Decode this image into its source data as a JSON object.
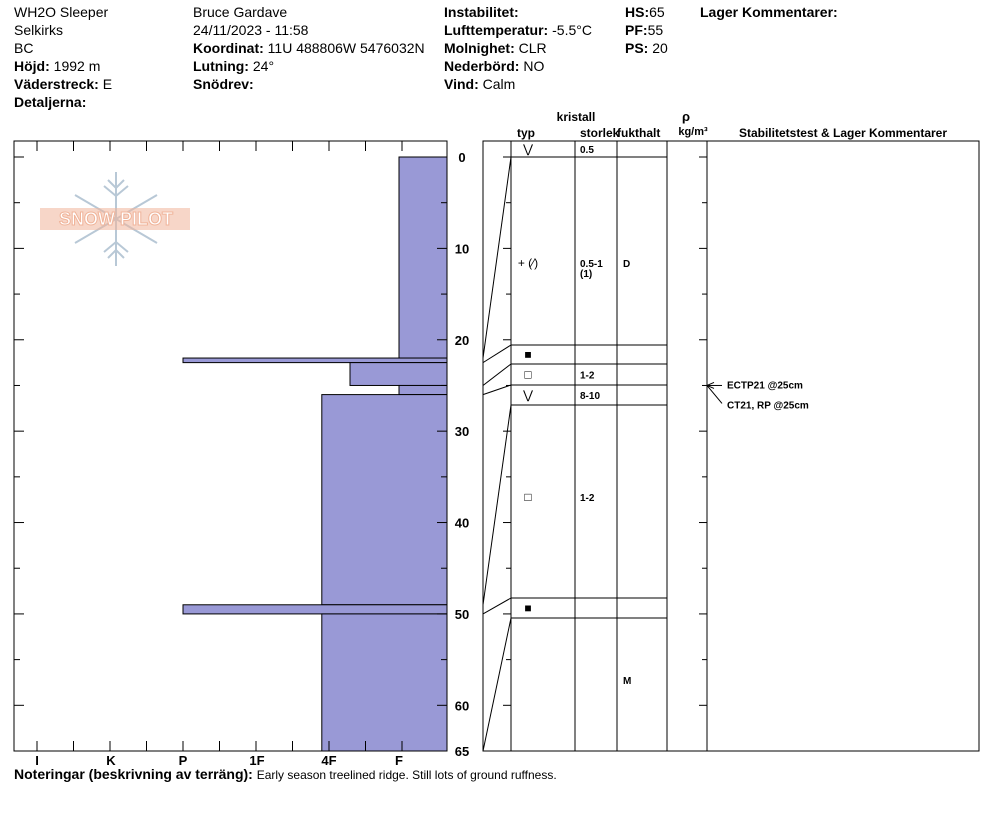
{
  "header": {
    "location": "WH2O Sleeper",
    "range": "Selkirks",
    "state": "BC",
    "elevation_label": "Höjd:",
    "elevation": "1992 m",
    "aspect_label": "Väderstreck:",
    "aspect": "E",
    "details_label": "Detaljerna:",
    "observer": "Bruce Gardave",
    "datetime": "24/11/2023 - 11:58",
    "coord_label": "Koordinat:",
    "coord": "11U 488806W 5476032N",
    "slope_label": "Lutning:",
    "slope": "24°",
    "drift_label": "Snödrev:",
    "drift": "",
    "instability_label": "Instabilitet:",
    "instability": "",
    "airtemp_label": "Lufttemperatur:",
    "airtemp": "-5.5°C",
    "sky_label": "Molnighet:",
    "sky": "CLR",
    "precip_label": "Nederbörd:",
    "precip": "NO",
    "wind_label": "Vind:",
    "wind": "Calm",
    "hs_label": "HS:",
    "hs": "65",
    "pf_label": "PF:",
    "pf": "55",
    "ps_label": "PS:",
    "ps": "20",
    "layer_comments_label": "Lager Kommentarer:"
  },
  "columns": {
    "crystal": "kristall",
    "type": "typ",
    "size": "storlek",
    "moisture": "fukthalt",
    "rho": "ρ",
    "density_unit": "kg/m³",
    "stability": "Stabilitetstest & Lager Kommentarer"
  },
  "logo_text": "SNOW PILOT",
  "notes_label": "Noteringar (beskrivning av terräng):",
  "notes": "Early season treelined ridge.  Still lots of ground ruffness.",
  "colors": {
    "hardness_fill": "#9999d6",
    "line": "#000000",
    "logo": "#f0b49a",
    "flake": "#b8c8d6"
  },
  "chart_data": {
    "type": "bar",
    "title": "",
    "orientation": "horizontal-profile",
    "depth_range": [
      0,
      65
    ],
    "depth_ticks": [
      "0",
      "10",
      "20",
      "30",
      "40",
      "50",
      "60",
      "65"
    ],
    "hardness_categories": [
      "I",
      "K",
      "P",
      "1F",
      "4F",
      "F"
    ],
    "layers": [
      {
        "top": 0,
        "bottom": 22.0,
        "hardness": 5.0
      },
      {
        "top": 22.0,
        "bottom": 22.5,
        "hardness": 2.0
      },
      {
        "top": 22.5,
        "bottom": 25.0,
        "hardness": 4.3
      },
      {
        "top": 25.0,
        "bottom": 26.0,
        "hardness": 5.0
      },
      {
        "top": 26.0,
        "bottom": 49.0,
        "hardness": 3.9
      },
      {
        "top": 49.0,
        "bottom": 50.0,
        "hardness": 2.0
      },
      {
        "top": 50.0,
        "bottom": 65.0,
        "hardness": 3.9
      }
    ],
    "table_rows": [
      {
        "top": 0,
        "bottom": 0,
        "type": "⋁",
        "size": "0.5",
        "moisture": ""
      },
      {
        "top": 0,
        "bottom": 21,
        "type": "+ (⁄)",
        "size": "0.5-1 (1)",
        "moisture": "D"
      },
      {
        "top": 21,
        "bottom": 23,
        "type": "■",
        "size": "",
        "moisture": ""
      },
      {
        "top": 23,
        "bottom": 25,
        "type": "□",
        "size": "1-2",
        "moisture": ""
      },
      {
        "top": 25,
        "bottom": 27,
        "type": "⋁",
        "size": "8-10",
        "moisture": ""
      },
      {
        "top": 27,
        "bottom": 48.5,
        "type": "□",
        "size": "1-2",
        "moisture": ""
      },
      {
        "top": 48.5,
        "bottom": 50.5,
        "type": "■",
        "size": "",
        "moisture": ""
      },
      {
        "top": 50.5,
        "bottom": 65,
        "type": "",
        "size": "",
        "moisture": "M"
      }
    ],
    "stability_tests": [
      "ECTP21 @25cm",
      "CT21, RP @25cm"
    ],
    "test_depth": 25
  }
}
